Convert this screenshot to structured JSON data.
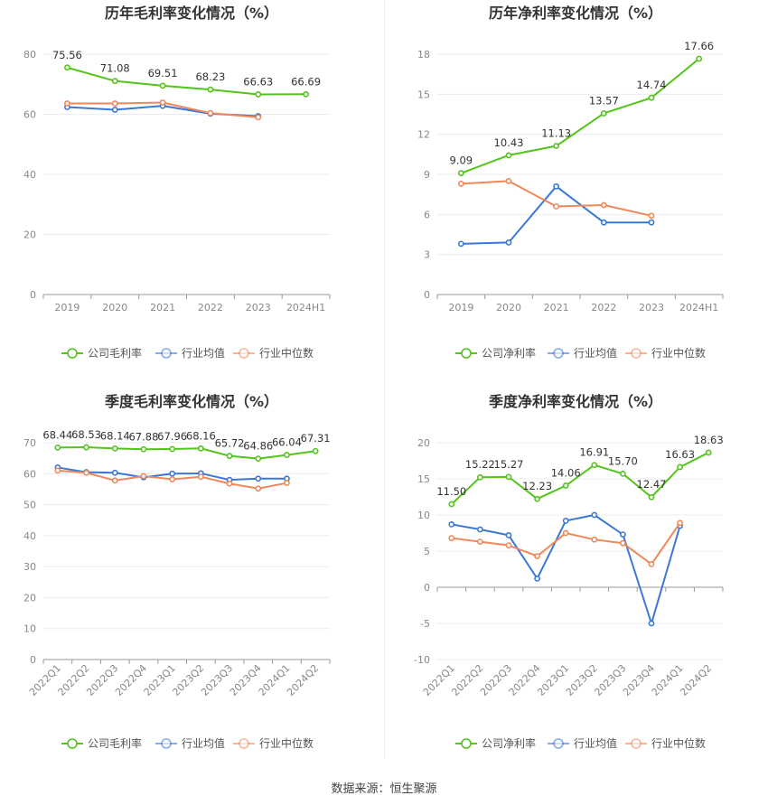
{
  "source": "数据来源：恒生聚源",
  "colors": {
    "company": "#52c41a",
    "avg": "#3a78d8",
    "median": "#f0875a"
  },
  "chart_data": [
    {
      "type": "line",
      "title": "历年毛利率变化情况（%）",
      "categories": [
        "2019",
        "2020",
        "2021",
        "2022",
        "2023",
        "2024H1"
      ],
      "ylim": [
        0,
        80
      ],
      "yticks": [
        0,
        20,
        40,
        60,
        80
      ],
      "rotate_x": false,
      "legend_position": "bottom",
      "series": [
        {
          "name": "公司毛利率",
          "key": "company",
          "values": [
            75.56,
            71.08,
            69.51,
            68.23,
            66.63,
            66.69
          ],
          "labels": [
            "75.56",
            "71.08",
            "69.51",
            "68.23",
            "66.63",
            "66.69"
          ]
        },
        {
          "name": "行业均值",
          "key": "avg",
          "values": [
            62.4,
            61.5,
            62.8,
            60.2,
            59.4,
            null
          ]
        },
        {
          "name": "行业中位数",
          "key": "median",
          "values": [
            63.6,
            63.6,
            63.9,
            60.4,
            59.0,
            null
          ]
        }
      ]
    },
    {
      "type": "line",
      "title": "历年净利率变化情况（%）",
      "categories": [
        "2019",
        "2020",
        "2021",
        "2022",
        "2023",
        "2024H1"
      ],
      "ylim": [
        0,
        18
      ],
      "yticks": [
        0,
        3,
        6,
        9,
        12,
        15,
        18
      ],
      "rotate_x": false,
      "legend_position": "bottom",
      "series": [
        {
          "name": "公司净利率",
          "key": "company",
          "values": [
            9.09,
            10.43,
            11.13,
            13.57,
            14.74,
            17.66
          ],
          "labels": [
            "9.09",
            "10.43",
            "11.13",
            "13.57",
            "14.74",
            "17.66"
          ]
        },
        {
          "name": "行业均值",
          "key": "avg",
          "values": [
            3.8,
            3.9,
            8.1,
            5.4,
            5.4,
            null
          ]
        },
        {
          "name": "行业中位数",
          "key": "median",
          "values": [
            8.3,
            8.5,
            6.6,
            6.7,
            5.9,
            null
          ]
        }
      ]
    },
    {
      "type": "line",
      "title": "季度毛利率变化情况（%）",
      "categories": [
        "2022Q1",
        "2022Q2",
        "2022Q3",
        "2022Q4",
        "2023Q1",
        "2023Q2",
        "2023Q3",
        "2023Q4",
        "2024Q1",
        "2024Q2"
      ],
      "ylim": [
        0,
        70
      ],
      "yticks": [
        0,
        10,
        20,
        30,
        40,
        50,
        60,
        70
      ],
      "rotate_x": true,
      "legend_position": "bottom",
      "series": [
        {
          "name": "公司毛利率",
          "key": "company",
          "values": [
            68.44,
            68.53,
            68.14,
            67.88,
            67.96,
            68.16,
            65.72,
            64.86,
            66.04,
            67.31
          ],
          "labels": [
            "68.44",
            "68.53",
            "68.14",
            "67.88",
            "67.96",
            "68.16",
            "65.72",
            "64.86",
            "66.04",
            "67.31"
          ]
        },
        {
          "name": "行业均值",
          "key": "avg",
          "values": [
            62.0,
            60.5,
            60.3,
            58.8,
            60.0,
            60.1,
            58.0,
            58.4,
            58.4,
            null
          ]
        },
        {
          "name": "行业中位数",
          "key": "median",
          "values": [
            61.0,
            60.3,
            57.8,
            59.2,
            58.2,
            59.0,
            56.8,
            55.2,
            57.0,
            null
          ]
        }
      ]
    },
    {
      "type": "line",
      "title": "季度净利率变化情况（%）",
      "categories": [
        "2022Q1",
        "2022Q2",
        "2022Q3",
        "2022Q4",
        "2023Q1",
        "2023Q2",
        "2023Q3",
        "2023Q4",
        "2024Q1",
        "2024Q2"
      ],
      "ylim": [
        -10,
        20
      ],
      "yticks": [
        -10,
        -5,
        0,
        5,
        10,
        15,
        20
      ],
      "rotate_x": true,
      "legend_position": "bottom",
      "series": [
        {
          "name": "公司净利率",
          "key": "company",
          "values": [
            11.5,
            15.22,
            15.27,
            12.23,
            14.06,
            16.91,
            15.7,
            12.47,
            16.63,
            18.63
          ],
          "labels": [
            "11.50",
            "15.22",
            "15.27",
            "12.23",
            "14.06",
            "16.91",
            "15.70",
            "12.47",
            "16.63",
            "18.63"
          ]
        },
        {
          "name": "行业均值",
          "key": "avg",
          "values": [
            8.7,
            8.0,
            7.2,
            1.2,
            9.2,
            10.0,
            7.3,
            -5.0,
            8.5,
            null
          ]
        },
        {
          "name": "行业中位数",
          "key": "median",
          "values": [
            6.8,
            6.3,
            5.8,
            4.3,
            7.5,
            6.6,
            6.1,
            3.2,
            8.9,
            null
          ]
        }
      ]
    }
  ]
}
